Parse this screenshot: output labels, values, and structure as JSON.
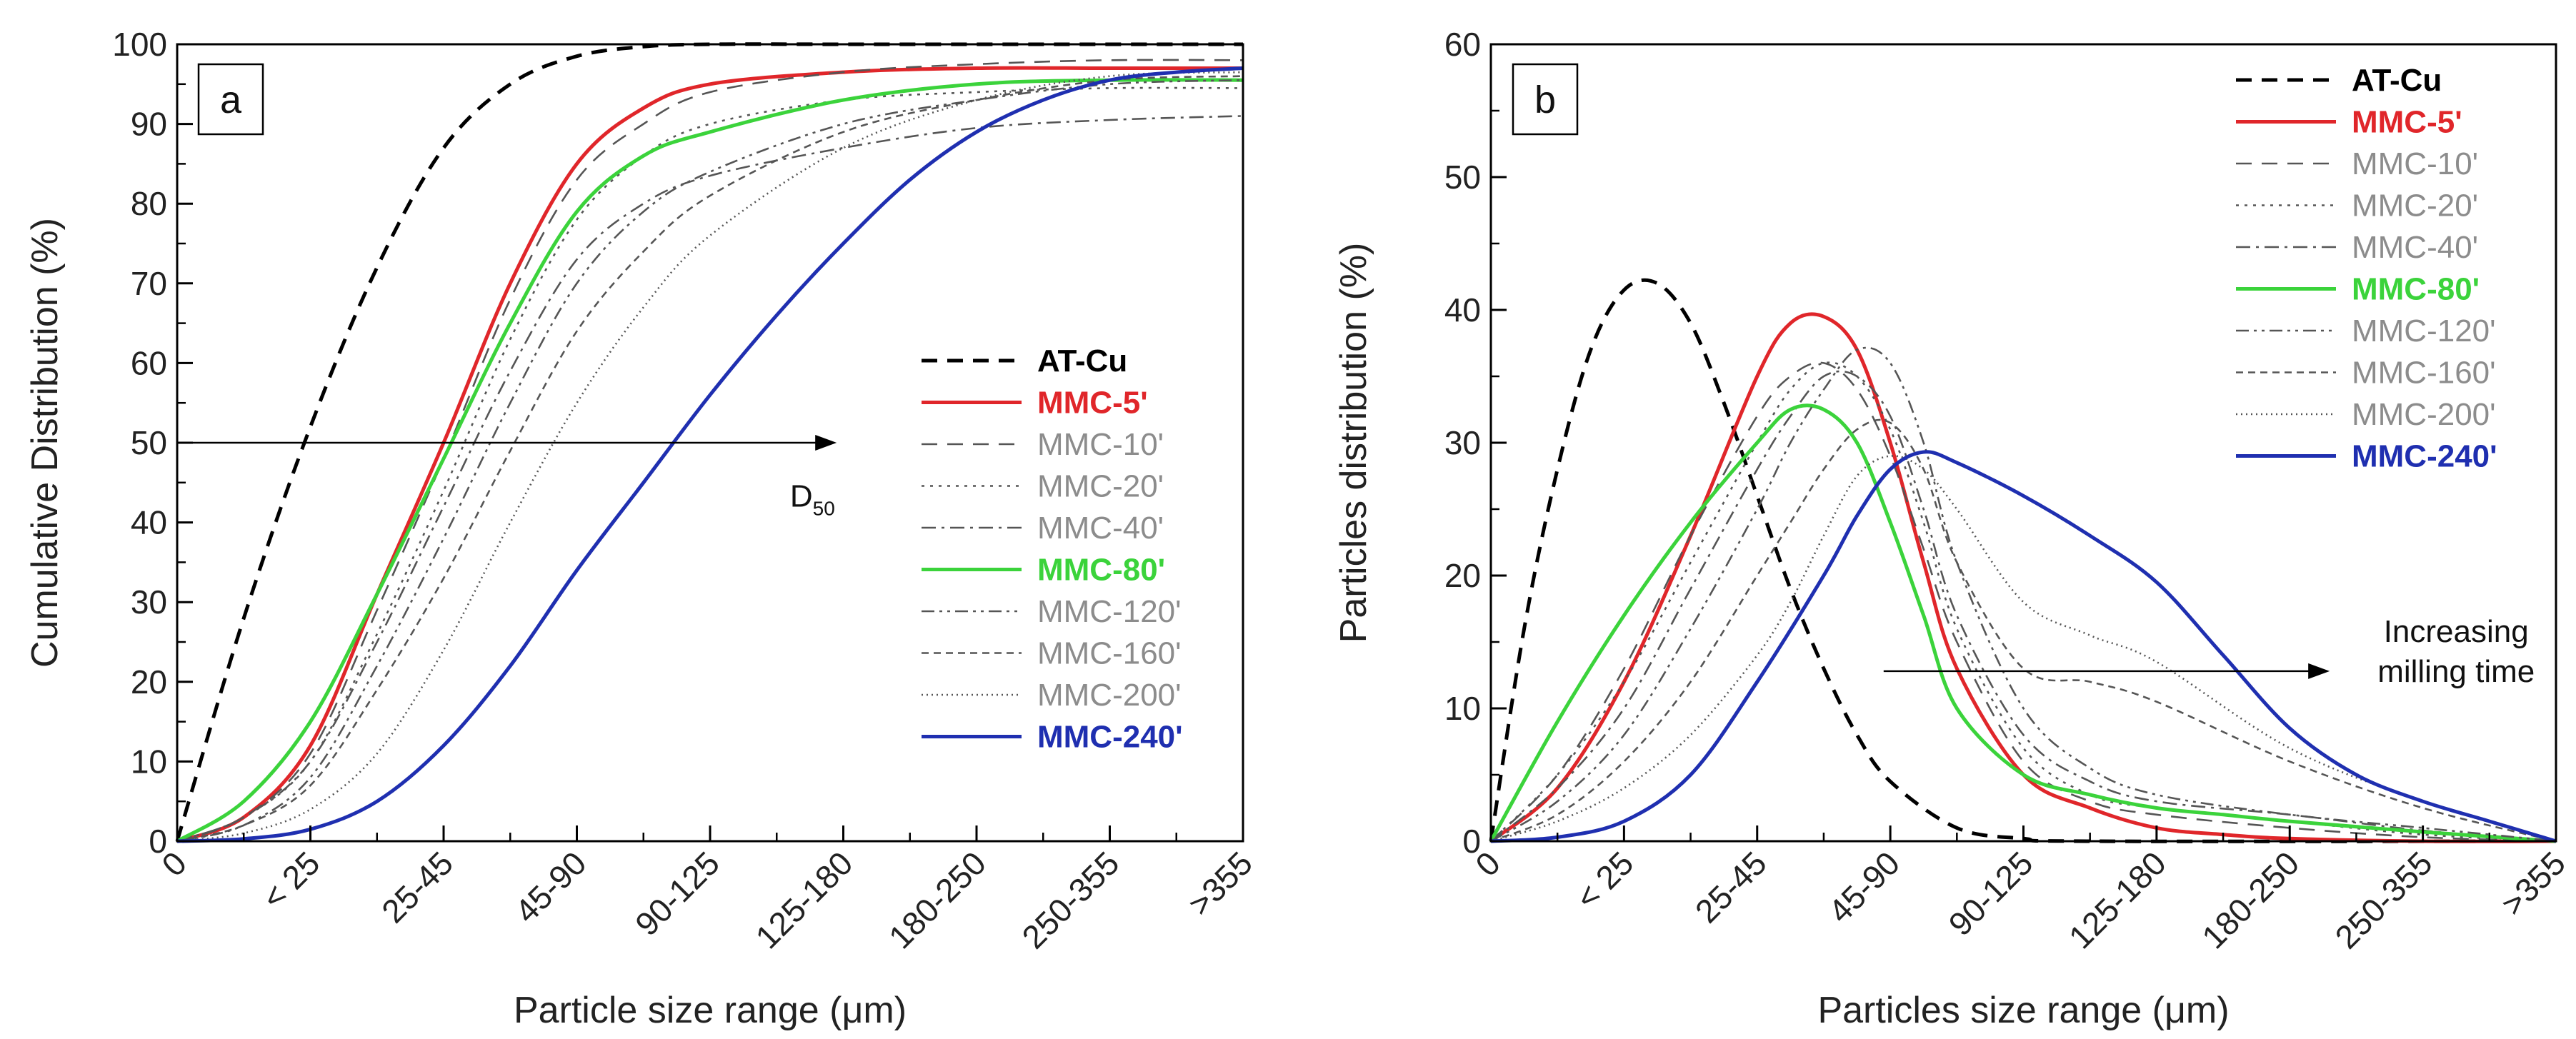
{
  "figure": {
    "line_colors": {
      "base": "#000000",
      "red": "#e0262a",
      "grey": "#555555",
      "green": "#3bd33b",
      "blue": "#1f2fb0"
    },
    "legend_text_colors": {
      "base": "#000000",
      "red": "#e0262a",
      "grey": "#8c8c8c",
      "green": "#3bd33b",
      "blue": "#1f2fb0"
    }
  },
  "chart_data": [
    {
      "type": "line",
      "panel_label": "a",
      "xlabel": "Particle size range (μm)",
      "ylabel": "Cumulative Distribution (%)",
      "categories": [
        "0",
        "< 25",
        "25-45",
        "45-90",
        "90-125",
        "125-180",
        "180-250",
        "250-355",
        ">355"
      ],
      "ylim": [
        0,
        100
      ],
      "yticks": [
        "0",
        "10",
        "20",
        "30",
        "40",
        "50",
        "60",
        "70",
        "80",
        "90",
        "100"
      ],
      "legend_position": "center-right",
      "annotations": [
        {
          "text": "D",
          "subscript": "50",
          "arrow_y": 50,
          "arrow_from_x": 0,
          "arrow_to_x": 4.95,
          "label_x": 4.6,
          "label_y": 42
        }
      ],
      "series": [
        {
          "name": "AT-Cu",
          "style": "dash",
          "color_key": "base",
          "legend_bold": true,
          "x": [
            0,
            0.5,
            1,
            1.5,
            2,
            2.5,
            3,
            3.5,
            4,
            5,
            6,
            7,
            8
          ],
          "values": [
            0,
            28,
            52,
            72,
            87,
            95,
            98.5,
            99.7,
            100,
            100,
            100,
            100,
            100
          ]
        },
        {
          "name": "MMC-5'",
          "style": "solid",
          "color_key": "red",
          "legend_bold": true,
          "x": [
            0,
            0.5,
            1,
            1.5,
            2,
            2.5,
            3,
            3.5,
            4,
            5,
            6,
            7,
            8
          ],
          "values": [
            0,
            3,
            12,
            31,
            50,
            70,
            85,
            92,
            95,
            96.5,
            97,
            97,
            97
          ]
        },
        {
          "name": "MMC-10'",
          "style": "dash",
          "color_key": "grey",
          "legend_bold": false,
          "x": [
            0,
            0.5,
            1,
            1.5,
            2,
            2.5,
            3,
            3.5,
            4,
            5,
            6,
            7,
            8
          ],
          "values": [
            0,
            3,
            11,
            29,
            48,
            68,
            83,
            90,
            94,
            96.5,
            97.5,
            98,
            98
          ]
        },
        {
          "name": "MMC-20'",
          "style": "dot",
          "color_key": "grey",
          "legend_bold": false,
          "x": [
            0,
            0.5,
            1,
            1.5,
            2,
            2.5,
            3,
            3.5,
            4,
            5,
            6,
            7,
            8
          ],
          "values": [
            0,
            3,
            10,
            26,
            44,
            63,
            78,
            86,
            90,
            93,
            94,
            94.5,
            94.5
          ]
        },
        {
          "name": "MMC-40'",
          "style": "dashdot",
          "color_key": "grey",
          "legend_bold": false,
          "x": [
            0,
            0.5,
            1,
            1.5,
            2,
            2.5,
            3,
            3.5,
            4,
            5,
            6,
            7,
            8
          ],
          "values": [
            0,
            3,
            10,
            25,
            42,
            59,
            73,
            80,
            83.5,
            87,
            89.5,
            90.5,
            91
          ]
        },
        {
          "name": "MMC-80'",
          "style": "solid",
          "color_key": "green",
          "legend_bold": true,
          "x": [
            0,
            0.5,
            1,
            1.5,
            2,
            2.5,
            3,
            3.5,
            4,
            5,
            6,
            7,
            8
          ],
          "values": [
            0,
            5,
            15,
            31,
            48,
            65,
            79,
            86,
            89,
            93,
            95,
            95.5,
            95.5
          ]
        },
        {
          "name": "MMC-120'",
          "style": "dashdotdot",
          "color_key": "grey",
          "legend_bold": false,
          "x": [
            0,
            0.5,
            1,
            1.5,
            2,
            2.5,
            3,
            3.5,
            4,
            5,
            6,
            7,
            8
          ],
          "values": [
            0,
            2,
            8,
            22,
            38,
            55,
            70,
            79,
            84,
            90,
            93,
            95,
            95.5
          ]
        },
        {
          "name": "MMC-160'",
          "style": "shortdash",
          "color_key": "grey",
          "legend_bold": false,
          "x": [
            0,
            0.5,
            1,
            1.5,
            2,
            2.5,
            3,
            3.5,
            4,
            5,
            6,
            7,
            8
          ],
          "values": [
            0,
            2,
            7,
            19,
            33,
            49,
            64,
            74,
            81,
            89,
            93,
            95.5,
            96
          ]
        },
        {
          "name": "MMC-200'",
          "style": "shortdot",
          "color_key": "grey",
          "legend_bold": false,
          "x": [
            0,
            0.5,
            1,
            1.5,
            2,
            2.5,
            3,
            3.5,
            4,
            5,
            6,
            7,
            8
          ],
          "values": [
            0,
            1,
            4,
            11,
            24,
            40,
            55,
            67,
            76,
            87,
            93,
            96,
            96.5
          ]
        },
        {
          "name": "MMC-240'",
          "style": "solid",
          "color_key": "blue",
          "legend_bold": true,
          "x": [
            0,
            0.5,
            1,
            1.5,
            2,
            2.5,
            3,
            3.5,
            4,
            4.5,
            5,
            5.5,
            6,
            6.5,
            7,
            7.5,
            8
          ],
          "values": [
            0,
            0.3,
            1.5,
            5,
            12,
            22,
            34,
            45,
            56,
            66,
            75,
            83,
            89,
            93,
            95.5,
            96.5,
            97
          ]
        }
      ]
    },
    {
      "type": "line",
      "panel_label": "b",
      "xlabel": "Particles size range (μm)",
      "ylabel": "Particles distribution (%)",
      "categories": [
        "0",
        "< 25",
        "25-45",
        "45-90",
        "90-125",
        "125-180",
        "180-250",
        "250-355",
        ">355"
      ],
      "ylim": [
        0,
        60
      ],
      "yticks": [
        "0",
        "10",
        "20",
        "30",
        "40",
        "50",
        "60"
      ],
      "legend_position": "top-right",
      "annotations": [
        {
          "text_lines": [
            "Increasing",
            "milling time"
          ],
          "arrow_y": 12.8,
          "arrow_from_x": 2.95,
          "arrow_to_x": 6.3,
          "label_x": 7.25,
          "label_y": 15
        }
      ],
      "series": [
        {
          "name": "AT-Cu",
          "style": "dash",
          "color_key": "base",
          "legend_bold": true,
          "x": [
            0,
            0.25,
            0.5,
            0.75,
            1,
            1.25,
            1.5,
            1.75,
            2,
            2.25,
            2.5,
            2.75,
            3,
            3.5,
            4,
            4.5,
            8
          ],
          "values": [
            0,
            16,
            28,
            37,
            41.5,
            42,
            39,
            33,
            26,
            19,
            13,
            8,
            4.5,
            1,
            0.2,
            0,
            0
          ]
        },
        {
          "name": "MMC-5'",
          "style": "solid",
          "color_key": "red",
          "legend_bold": true,
          "x": [
            0,
            0.5,
            1,
            1.5,
            2,
            2.25,
            2.5,
            2.75,
            3,
            3.25,
            3.5,
            4,
            4.5,
            5,
            5.5,
            6,
            7,
            8
          ],
          "values": [
            0,
            4,
            12,
            23,
            35,
            39,
            39.5,
            37,
            30,
            21,
            13,
            5,
            2.5,
            1,
            0.5,
            0.2,
            0,
            0
          ]
        },
        {
          "name": "MMC-10'",
          "style": "dash",
          "color_key": "grey",
          "legend_bold": false,
          "x": [
            0,
            0.5,
            1,
            1.5,
            2,
            2.25,
            2.5,
            2.75,
            3,
            3.25,
            3.5,
            4,
            4.5,
            5,
            6,
            7,
            8
          ],
          "values": [
            0,
            5,
            13,
            23,
            32,
            35,
            36,
            34,
            29,
            22,
            15,
            6,
            3,
            2,
            1,
            0.3,
            0
          ]
        },
        {
          "name": "MMC-20'",
          "style": "dot",
          "color_key": "grey",
          "legend_bold": false,
          "x": [
            0,
            0.5,
            1,
            1.5,
            2,
            2.25,
            2.5,
            2.75,
            3,
            3.25,
            3.5,
            4,
            4.5,
            5,
            6,
            7,
            8
          ],
          "values": [
            0,
            5,
            12,
            21,
            30,
            34,
            36,
            35,
            31,
            24,
            16,
            7,
            3.5,
            2.5,
            1.5,
            0.5,
            0
          ]
        },
        {
          "name": "MMC-40'",
          "style": "dashdot",
          "color_key": "grey",
          "legend_bold": false,
          "x": [
            0,
            0.5,
            1,
            1.5,
            2,
            2.25,
            2.5,
            2.75,
            3,
            3.25,
            3.5,
            4,
            4.5,
            5,
            6,
            7,
            8
          ],
          "values": [
            0,
            4,
            10,
            19,
            28,
            32,
            35,
            35,
            32,
            25,
            17,
            8,
            4.5,
            3,
            2,
            0.8,
            0
          ]
        },
        {
          "name": "MMC-80'",
          "style": "solid",
          "color_key": "green",
          "legend_bold": true,
          "x": [
            0,
            0.5,
            1,
            1.5,
            2,
            2.25,
            2.5,
            2.75,
            3,
            3.25,
            3.5,
            4,
            4.5,
            5,
            5.5,
            6,
            7,
            8
          ],
          "values": [
            0,
            9,
            17,
            24,
            30,
            32.5,
            32.5,
            30,
            24,
            17,
            10,
            5,
            3.5,
            2.5,
            2,
            1.5,
            0.7,
            0
          ]
        },
        {
          "name": "MMC-120'",
          "style": "dashdotdot",
          "color_key": "grey",
          "legend_bold": false,
          "x": [
            0,
            0.5,
            1,
            1.5,
            2,
            2.25,
            2.5,
            2.75,
            3,
            3.25,
            3.5,
            4,
            4.5,
            5,
            6,
            7,
            8
          ],
          "values": [
            0,
            3,
            8,
            16,
            25,
            30,
            34,
            37,
            36,
            30,
            21,
            10,
            5.5,
            3.5,
            2,
            1,
            0
          ]
        },
        {
          "name": "MMC-160'",
          "style": "shortdash",
          "color_key": "grey",
          "legend_bold": false,
          "x": [
            0,
            0.5,
            1,
            1.5,
            2,
            2.25,
            2.5,
            2.75,
            3,
            3.25,
            3.5,
            4,
            4.5,
            5,
            6,
            7,
            8
          ],
          "values": [
            0,
            2,
            6,
            12,
            20,
            24,
            28,
            31,
            31.5,
            28,
            21,
            13,
            12,
            10.5,
            6,
            2.5,
            0
          ]
        },
        {
          "name": "MMC-200'",
          "style": "shortdot",
          "color_key": "grey",
          "legend_bold": false,
          "x": [
            0,
            0.5,
            1,
            1.5,
            2,
            2.25,
            2.5,
            2.75,
            3,
            3.25,
            3.5,
            4,
            4.5,
            5,
            6,
            7,
            8
          ],
          "values": [
            0,
            1.5,
            4,
            8,
            14,
            18,
            23,
            27.5,
            29,
            28,
            25,
            18,
            15.5,
            13.5,
            7,
            3,
            0
          ]
        },
        {
          "name": "MMC-240'",
          "style": "solid",
          "color_key": "blue",
          "legend_bold": true,
          "x": [
            0,
            0.5,
            1,
            1.5,
            2,
            2.5,
            2.75,
            3,
            3.25,
            3.5,
            4,
            4.5,
            5,
            5.5,
            6,
            6.5,
            7,
            7.5,
            8
          ],
          "values": [
            0,
            0.3,
            1.5,
            5,
            12,
            20,
            24.5,
            28,
            29.3,
            28.5,
            26,
            23,
            19.5,
            14,
            8.5,
            5,
            3,
            1.5,
            0
          ]
        }
      ]
    }
  ]
}
